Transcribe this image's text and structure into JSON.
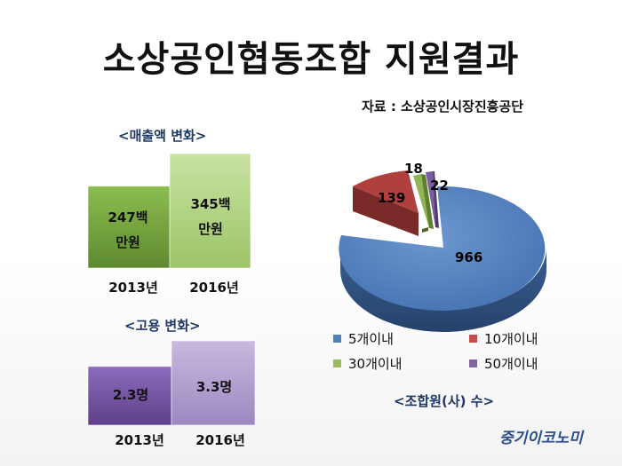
{
  "header": {
    "title": "소상공인협동조합 지원결과",
    "source": "자료 : 소상공인시장진흥공단"
  },
  "sales": {
    "label": "<매출액 변화>",
    "bars": [
      {
        "year": "2013년",
        "line1": "247백",
        "line2": "만원"
      },
      {
        "year": "2016년",
        "line1": "345백",
        "line2": "만원"
      }
    ]
  },
  "employment": {
    "label": "<고용 변화>",
    "bars": [
      {
        "year": "2013년",
        "text": "2.3명"
      },
      {
        "year": "2016년",
        "text": "3.3명"
      }
    ]
  },
  "pie": {
    "label": "<조합원(사) 수>",
    "legend": [
      "5개이내",
      "10개이내",
      "30개이내",
      "50개이내"
    ]
  },
  "watermark": "중기이코노미",
  "colors": {
    "green_dark": "#76a540",
    "green_light": "#b3d480",
    "purple_dark": "#7a5aa8",
    "purple_light": "#b3a2cf",
    "pie_blue": "#4f81bd",
    "pie_red": "#c0504d",
    "pie_green": "#9bbb59",
    "pie_purple": "#8064a2"
  },
  "chart_data": [
    {
      "type": "bar",
      "title": "<매출액 변화>",
      "categories": [
        "2013년",
        "2016년"
      ],
      "values": [
        247,
        345
      ],
      "value_labels": [
        "247백 만원",
        "345백 만원"
      ],
      "unit": "백만원"
    },
    {
      "type": "bar",
      "title": "<고용 변화>",
      "categories": [
        "2013년",
        "2016년"
      ],
      "values": [
        2.3,
        3.3
      ],
      "value_labels": [
        "2.3명",
        "3.3명"
      ],
      "unit": "명"
    },
    {
      "type": "pie",
      "title": "<조합원(사) 수>",
      "categories": [
        "5개이내",
        "10개이내",
        "30개이내",
        "50개이내"
      ],
      "values": [
        966,
        139,
        18,
        22
      ],
      "legend_placement": "bottom"
    }
  ]
}
